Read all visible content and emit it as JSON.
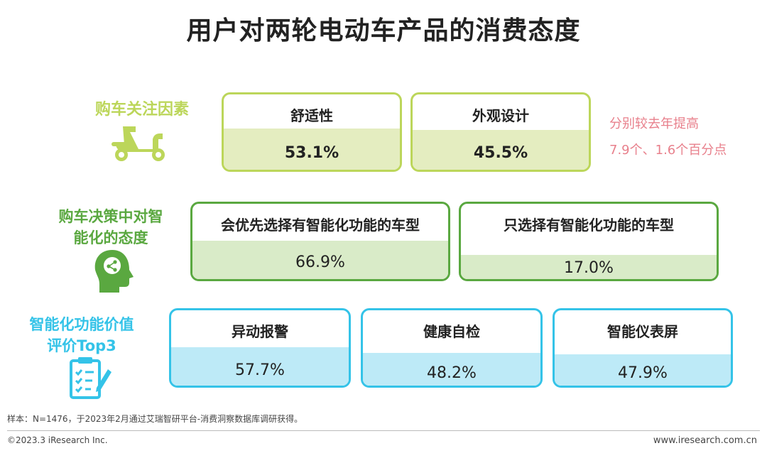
{
  "title": "用户对两轮电动车产品的消费态度",
  "rows": [
    {
      "label_lines": [
        "购车关注因素"
      ],
      "icon": "scooter-icon",
      "color": "#bcd65a",
      "items": [
        {
          "label": "舒适性",
          "value": "53.1%"
        },
        {
          "label": "外观设计",
          "value": "45.5%"
        }
      ],
      "note_lines": [
        "分别较去年提高",
        "7.9个、1.6个百分点"
      ]
    },
    {
      "label_lines": [
        "购车决策中对智",
        "能化的态度"
      ],
      "icon": "head-brain-icon",
      "color": "#5aa840",
      "items": [
        {
          "label": "会优先选择有智能化功能的车型",
          "value": "66.9%"
        },
        {
          "label": "只选择有智能化功能的车型",
          "value": "17.0%"
        }
      ]
    },
    {
      "label_lines": [
        "智能化功能价值",
        "评价Top3"
      ],
      "icon": "checklist-icon",
      "color": "#34c3e8",
      "items": [
        {
          "label": "异动报警",
          "value": "57.7%"
        },
        {
          "label": "健康自检",
          "value": "48.2%"
        },
        {
          "label": "智能仪表屏",
          "value": "47.9%"
        }
      ]
    }
  ],
  "chart_data": {
    "type": "table",
    "title": "用户对两轮电动车产品的消费态度",
    "groups": [
      {
        "name": "购车关注因素",
        "categories": [
          "舒适性",
          "外观设计"
        ],
        "values": [
          53.1,
          45.5
        ]
      },
      {
        "name": "购车决策中对智能化的态度",
        "categories": [
          "会优先选择有智能化功能的车型",
          "只选择有智能化功能的车型"
        ],
        "values": [
          66.9,
          17.0
        ]
      },
      {
        "name": "智能化功能价值评价Top3",
        "categories": [
          "异动报警",
          "健康自检",
          "智能仪表屏"
        ],
        "values": [
          57.7,
          48.2,
          47.9
        ]
      }
    ],
    "unit": "%"
  },
  "footer": {
    "source": "样本：N=1476，于2023年2月通过艾瑞智研平台-消费洞察数据库调研获得。",
    "copyright": "©2023.3 iResearch Inc.",
    "website": "www.iresearch.com.cn"
  }
}
